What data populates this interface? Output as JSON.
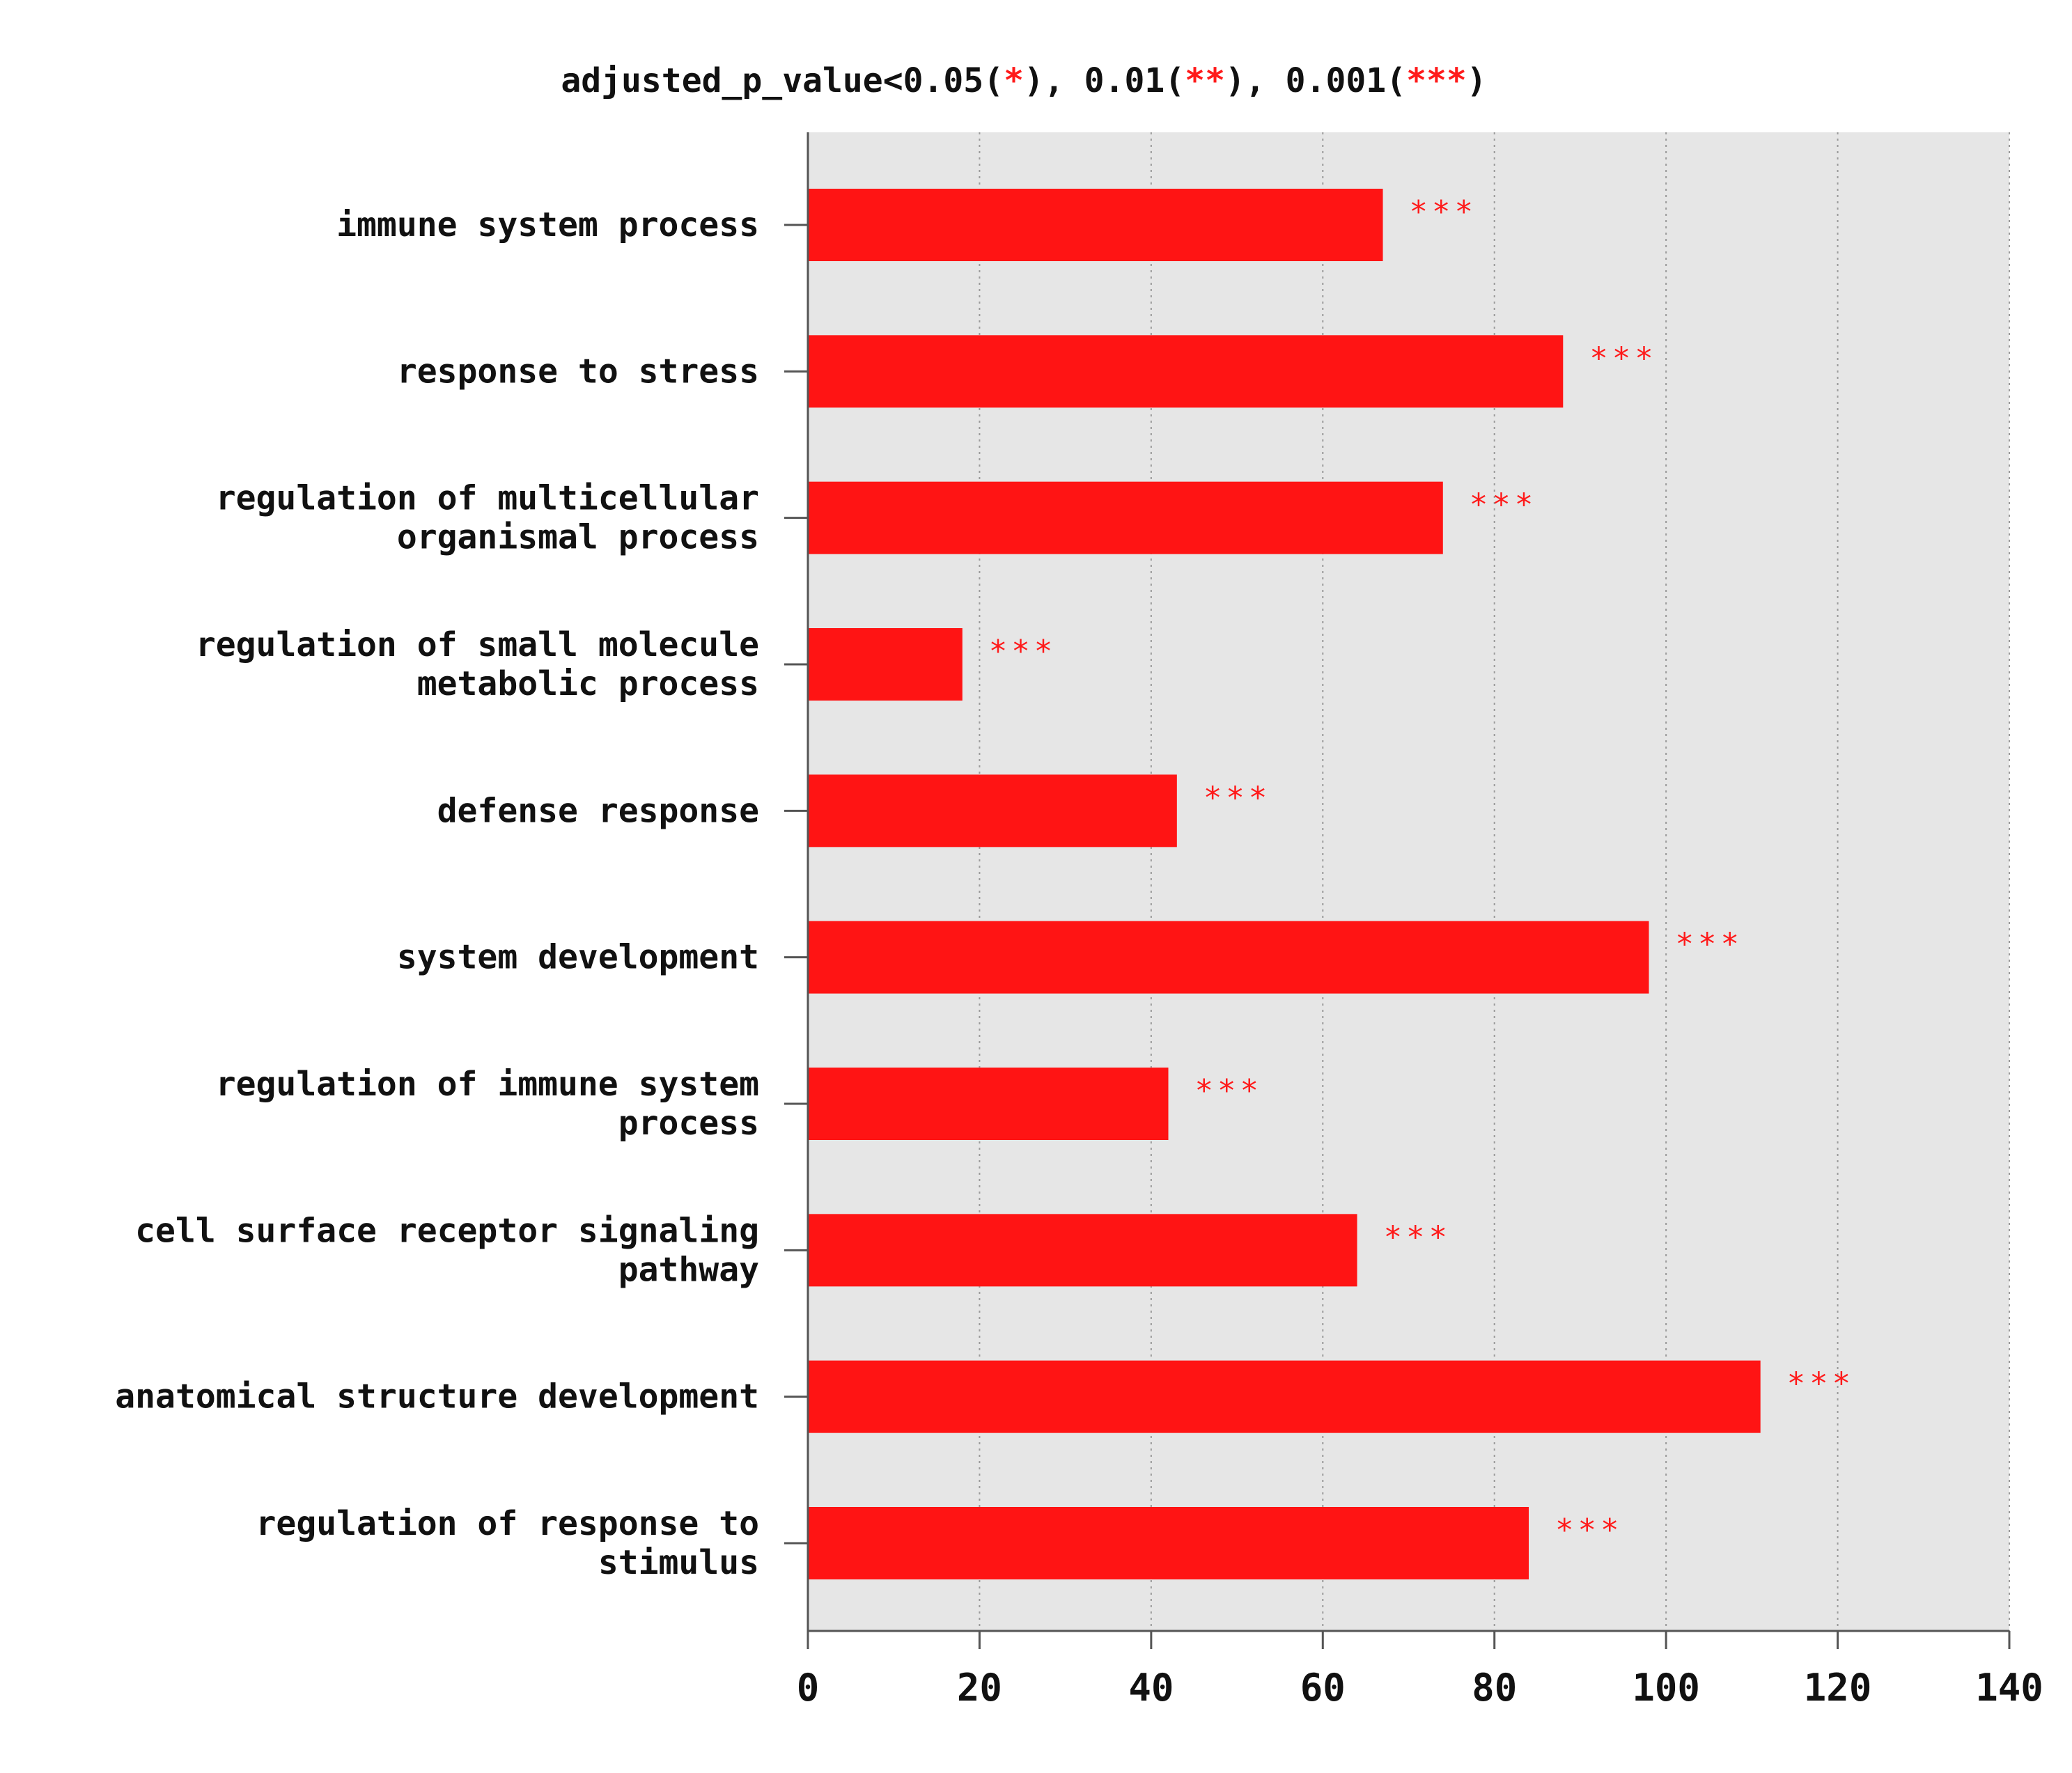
{
  "chart_data": {
    "type": "bar",
    "orientation": "horizontal",
    "title_parts": [
      {
        "text": "adjusted_p_value<0.05(",
        "color": "#111111"
      },
      {
        "text": "*",
        "color": "#ff1a1a"
      },
      {
        "text": "), 0.01(",
        "color": "#111111"
      },
      {
        "text": "**",
        "color": "#ff1a1a"
      },
      {
        "text": "), 0.001(",
        "color": "#111111"
      },
      {
        "text": "***",
        "color": "#ff1a1a"
      },
      {
        "text": ")",
        "color": "#111111"
      }
    ],
    "categories": [
      [
        "immune system process"
      ],
      [
        "response to stress"
      ],
      [
        "regulation of multicellular",
        "organismal process"
      ],
      [
        "regulation of small molecule",
        "metabolic process"
      ],
      [
        "defense response"
      ],
      [
        "system development"
      ],
      [
        "regulation of immune system",
        "process"
      ],
      [
        "cell surface receptor signaling",
        "pathway"
      ],
      [
        "anatomical structure development"
      ],
      [
        "regulation of response to",
        "stimulus"
      ]
    ],
    "values": [
      67,
      88,
      74,
      18,
      43,
      98,
      42,
      64,
      111,
      84
    ],
    "significance": [
      "***",
      "***",
      "***",
      "***",
      "***",
      "***",
      "***",
      "***",
      "***",
      "***"
    ],
    "xlim": [
      0,
      140
    ],
    "xticks": [
      "0",
      "20",
      "40",
      "60",
      "80",
      "100",
      "120",
      "140"
    ],
    "grid": "vertical dotted",
    "bar_color": "#ff1414",
    "plot_background": "#e6e6e6"
  }
}
